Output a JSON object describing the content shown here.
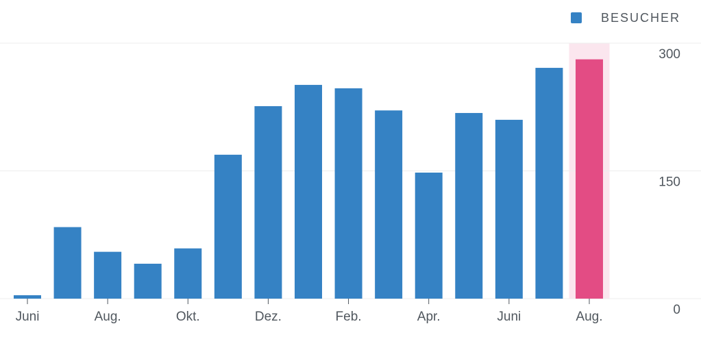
{
  "chart_data": {
    "type": "bar",
    "categories": [
      "Juni",
      null,
      "Aug.",
      null,
      "Okt.",
      null,
      "Dez.",
      null,
      "Feb.",
      null,
      "Apr.",
      null,
      "Juni",
      null,
      "Aug."
    ],
    "series": [
      {
        "name": "BESUCHER",
        "color": "#3582c4",
        "values": [
          4,
          84,
          55,
          41,
          59,
          169,
          226,
          251,
          247,
          221,
          148,
          218,
          210,
          271,
          281
        ]
      }
    ],
    "highlight": {
      "index": 14,
      "color": "#e34c84",
      "band_color": "#fbe6ee"
    },
    "ylim": [
      0,
      300
    ],
    "yticks": [
      0,
      150,
      300
    ],
    "grid": true,
    "legend": "top-right"
  }
}
